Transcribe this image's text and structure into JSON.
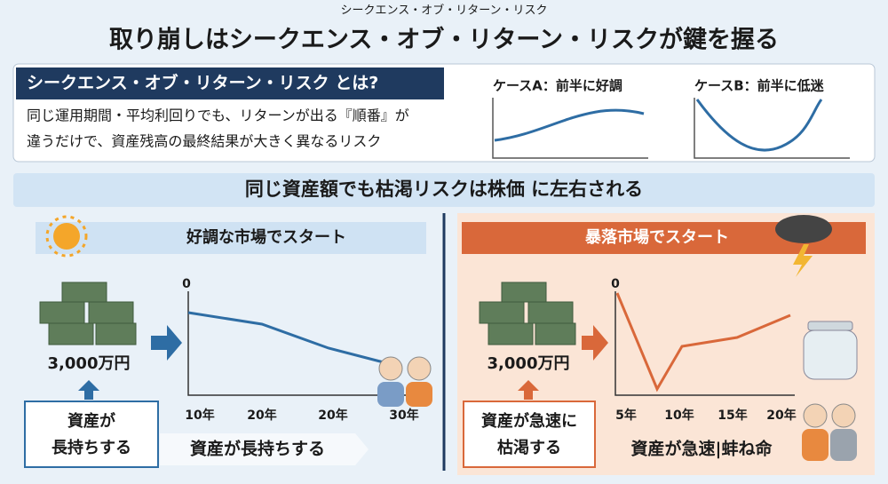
{
  "header": {
    "kicker": "シークエンス・オブ・リターン・リスク",
    "title": "取り崩しはシークエンス・オブ・リターン・リスクが鍵を握る"
  },
  "definition": {
    "label": "シークエンス・オブ・リターン・リスク とは?",
    "lines": [
      "同じ運用期間・平均利回りでも、リターンが出る『順番』が",
      "違うだけで、資産残高の最終結果が大きく異なるリスク"
    ],
    "cases": [
      "ケースA：前半に好調",
      "ケースB：前半に低迷"
    ]
  },
  "section_title": "同じ資産額でも枯渇リスクは株価 に左右される",
  "panels": [
    {
      "title": "好調な市場でスタート",
      "amount": "3,000万円",
      "result": [
        "資産が",
        "長持ちする"
      ],
      "chart": {
        "top_label": "0",
        "x_labels": [
          "10年",
          "20年",
          "20年",
          "30年"
        ]
      },
      "caption": "資産が長持ちする"
    },
    {
      "title": "暴落市場でスタート",
      "amount": "3,000万円",
      "result": [
        "資産が急速に",
        "枯渇する"
      ],
      "chart": {
        "top_label": "0",
        "x_labels": [
          "5年",
          "10年",
          "15年",
          "20年"
        ]
      },
      "caption": "資産が急速|蚌ね命"
    }
  ]
}
